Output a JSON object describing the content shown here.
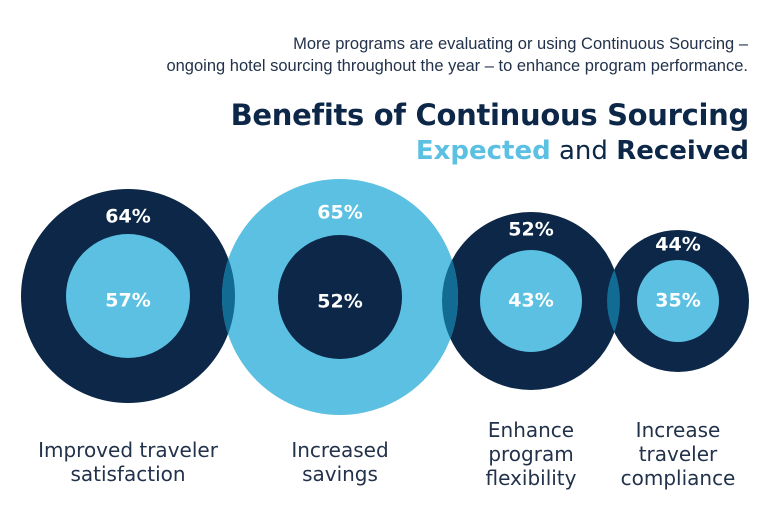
{
  "intro": {
    "line1": "More programs are evaluating or using Continuous Sourcing –",
    "line2": "ongoing hotel sourcing throughout the year – to enhance program performance."
  },
  "heading": {
    "title": "Benefits of Continuous Sourcing",
    "expected_word": "Expected",
    "and_word": "and",
    "received_word": "Received"
  },
  "colors": {
    "dark_navy": "#0c2747",
    "light_blue": "#5bc0e2",
    "overlap": "#126b92",
    "text": "#23324b"
  },
  "chart_data": {
    "type": "bubble-ring",
    "series": [
      {
        "name": "Expected",
        "values": [
          64,
          65,
          52,
          44
        ]
      },
      {
        "name": "Received",
        "values": [
          57,
          52,
          43,
          35
        ]
      }
    ],
    "categories": [
      [
        "Improved traveler",
        "satisfaction"
      ],
      [
        "Increased",
        "savings"
      ],
      [
        "Enhance",
        "program",
        "flexibility"
      ],
      [
        "Increase",
        "traveler",
        "compliance"
      ]
    ],
    "outer_labels": [
      "64%",
      "65%",
      "52%",
      "44%"
    ],
    "inner_labels": [
      "57%",
      "52%",
      "43%",
      "35%"
    ]
  }
}
